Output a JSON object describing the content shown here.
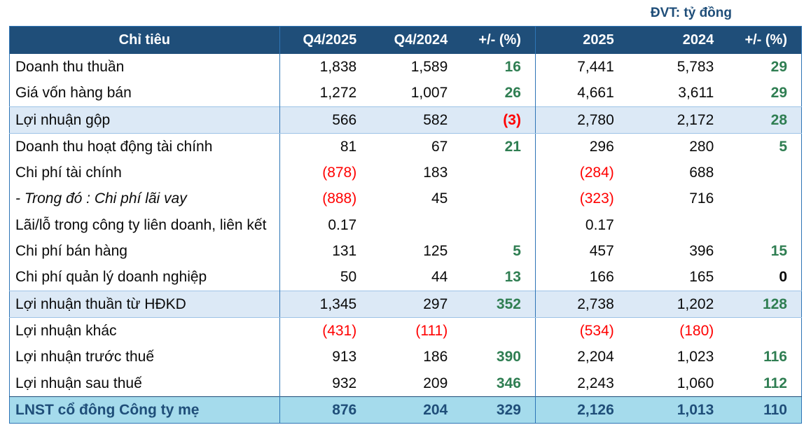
{
  "page": {
    "unit_note": "ĐVT: tỷ đồng"
  },
  "colors": {
    "header_bg": "#1F4E79",
    "header_text": "#FFFFFF",
    "highlight_row_bg": "#DCE9F6",
    "footer_row_bg": "#A5DBEC",
    "footer_text": "#1F4E79",
    "positive_green": "#2F7E52",
    "negative_red": "#FF0000",
    "border_blue": "#2E75B6"
  },
  "chart_data": {
    "type": "table",
    "title": "ĐVT: tỷ đồng",
    "columns": [
      {
        "label": "Chỉ tiêu",
        "align": "center"
      },
      {
        "label": "Q4/2025",
        "align": "right"
      },
      {
        "label": "Q4/2024",
        "align": "right"
      },
      {
        "label": "+/- (%)",
        "align": "right"
      },
      {
        "label": "2025",
        "align": "right"
      },
      {
        "label": "2024",
        "align": "right"
      },
      {
        "label": "+/- (%)",
        "align": "right"
      }
    ],
    "rows": [
      {
        "label": "Doanh thu thuần",
        "row_style": "",
        "label_style": "",
        "cells": [
          {
            "v": "1,838",
            "s": ""
          },
          {
            "v": "1,589",
            "s": ""
          },
          {
            "v": "16",
            "s": "green"
          },
          {
            "v": "7,441",
            "s": ""
          },
          {
            "v": "5,783",
            "s": ""
          },
          {
            "v": "29",
            "s": "green"
          }
        ]
      },
      {
        "label": "Giá vốn hàng bán",
        "row_style": "",
        "label_style": "",
        "cells": [
          {
            "v": "1,272",
            "s": ""
          },
          {
            "v": "1,007",
            "s": ""
          },
          {
            "v": "26",
            "s": "green"
          },
          {
            "v": "4,661",
            "s": ""
          },
          {
            "v": "3,611",
            "s": ""
          },
          {
            "v": "29",
            "s": "green"
          }
        ]
      },
      {
        "label": "Lợi nhuận gộp",
        "row_style": "highlight",
        "label_style": "",
        "cells": [
          {
            "v": "566",
            "s": ""
          },
          {
            "v": "582",
            "s": ""
          },
          {
            "v": "(3)",
            "s": "red bold"
          },
          {
            "v": "2,780",
            "s": ""
          },
          {
            "v": "2,172",
            "s": ""
          },
          {
            "v": "28",
            "s": "green"
          }
        ]
      },
      {
        "label": "Doanh thu hoạt động tài chính",
        "row_style": "",
        "label_style": "",
        "cells": [
          {
            "v": "81",
            "s": ""
          },
          {
            "v": "67",
            "s": ""
          },
          {
            "v": "21",
            "s": "green"
          },
          {
            "v": "296",
            "s": ""
          },
          {
            "v": "280",
            "s": ""
          },
          {
            "v": "5",
            "s": "green"
          }
        ]
      },
      {
        "label": "Chi phí tài chính",
        "row_style": "",
        "label_style": "",
        "cells": [
          {
            "v": "(878)",
            "s": "red"
          },
          {
            "v": "183",
            "s": ""
          },
          {
            "v": "",
            "s": ""
          },
          {
            "v": "(284)",
            "s": "red"
          },
          {
            "v": "688",
            "s": ""
          },
          {
            "v": "",
            "s": ""
          }
        ]
      },
      {
        "label": "- Trong đó : Chi phí lãi vay",
        "row_style": "",
        "label_style": "italic",
        "cells": [
          {
            "v": "(888)",
            "s": "red"
          },
          {
            "v": "45",
            "s": ""
          },
          {
            "v": "",
            "s": ""
          },
          {
            "v": "(323)",
            "s": "red"
          },
          {
            "v": "716",
            "s": ""
          },
          {
            "v": "",
            "s": ""
          }
        ]
      },
      {
        "label": "Lãi/lỗ trong công ty liên doanh, liên kết",
        "row_style": "",
        "label_style": "",
        "cells": [
          {
            "v": "0.17",
            "s": ""
          },
          {
            "v": "",
            "s": ""
          },
          {
            "v": "",
            "s": ""
          },
          {
            "v": "0.17",
            "s": ""
          },
          {
            "v": "",
            "s": ""
          },
          {
            "v": "",
            "s": ""
          }
        ]
      },
      {
        "label": "Chi phí bán hàng",
        "row_style": "",
        "label_style": "",
        "cells": [
          {
            "v": "131",
            "s": ""
          },
          {
            "v": "125",
            "s": ""
          },
          {
            "v": "5",
            "s": "green"
          },
          {
            "v": "457",
            "s": ""
          },
          {
            "v": "396",
            "s": ""
          },
          {
            "v": "15",
            "s": "green"
          }
        ]
      },
      {
        "label": "Chi phí quản lý doanh nghiệp",
        "row_style": "",
        "label_style": "",
        "cells": [
          {
            "v": "50",
            "s": ""
          },
          {
            "v": "44",
            "s": ""
          },
          {
            "v": "13",
            "s": "green"
          },
          {
            "v": "166",
            "s": ""
          },
          {
            "v": "165",
            "s": ""
          },
          {
            "v": "0",
            "s": "bold"
          }
        ]
      },
      {
        "label": "Lợi nhuận thuần từ HĐKD",
        "row_style": "highlight",
        "label_style": "",
        "cells": [
          {
            "v": "1,345",
            "s": ""
          },
          {
            "v": "297",
            "s": ""
          },
          {
            "v": "352",
            "s": "green"
          },
          {
            "v": "2,738",
            "s": ""
          },
          {
            "v": "1,202",
            "s": ""
          },
          {
            "v": "128",
            "s": "green"
          }
        ]
      },
      {
        "label": "Lợi nhuận khác",
        "row_style": "",
        "label_style": "",
        "cells": [
          {
            "v": "(431)",
            "s": "red"
          },
          {
            "v": "(111)",
            "s": "red"
          },
          {
            "v": "",
            "s": ""
          },
          {
            "v": "(534)",
            "s": "red"
          },
          {
            "v": "(180)",
            "s": "red"
          },
          {
            "v": "",
            "s": ""
          }
        ]
      },
      {
        "label": "Lợi nhuận trước thuế",
        "row_style": "",
        "label_style": "",
        "cells": [
          {
            "v": "913",
            "s": ""
          },
          {
            "v": "186",
            "s": ""
          },
          {
            "v": "390",
            "s": "green"
          },
          {
            "v": "2,204",
            "s": ""
          },
          {
            "v": "1,023",
            "s": ""
          },
          {
            "v": "116",
            "s": "green"
          }
        ]
      },
      {
        "label": "Lợi nhuận sau thuế",
        "row_style": "",
        "label_style": "",
        "cells": [
          {
            "v": "932",
            "s": ""
          },
          {
            "v": "209",
            "s": ""
          },
          {
            "v": "346",
            "s": "green"
          },
          {
            "v": "2,243",
            "s": ""
          },
          {
            "v": "1,060",
            "s": ""
          },
          {
            "v": "112",
            "s": "green"
          }
        ]
      },
      {
        "label": "LNST cổ đông Công ty mẹ",
        "row_style": "footer",
        "label_style": "bold",
        "cells": [
          {
            "v": "876",
            "s": ""
          },
          {
            "v": "204",
            "s": ""
          },
          {
            "v": "329",
            "s": "green"
          },
          {
            "v": "2,126",
            "s": ""
          },
          {
            "v": "1,013",
            "s": ""
          },
          {
            "v": "110",
            "s": "green"
          }
        ]
      }
    ]
  }
}
